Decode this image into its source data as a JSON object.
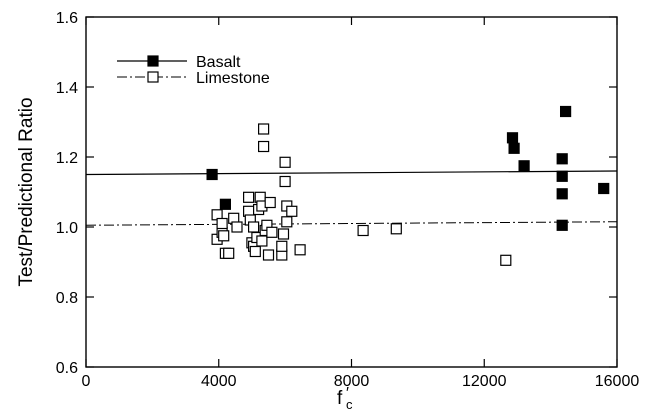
{
  "chart_data": {
    "type": "scatter",
    "xlabel_base": "f",
    "xlabel_sub": "c",
    "xlabel_prime": "′",
    "ylabel": "Test/Predictional Ratio",
    "xlim": [
      0,
      16000
    ],
    "ylim": [
      0.6,
      1.6
    ],
    "xticks": [
      0,
      4000,
      8000,
      12000,
      16000
    ],
    "yticks": [
      0.6,
      0.8,
      1.0,
      1.2,
      1.4,
      1.6
    ],
    "ytick_labels": [
      "0.6",
      "0.8",
      "1.0",
      "1.2",
      "1.4",
      "1.6"
    ],
    "legend_position": "top-left",
    "series": [
      {
        "name": "Basalt",
        "marker": "filled-square",
        "line_style": "solid",
        "fit_line": [
          1.15,
          1.16
        ],
        "points": [
          [
            3800,
            1.15
          ],
          [
            4200,
            1.065
          ],
          [
            12850,
            1.255
          ],
          [
            12900,
            1.225
          ],
          [
            13200,
            1.175
          ],
          [
            14350,
            1.195
          ],
          [
            14350,
            1.145
          ],
          [
            14350,
            1.095
          ],
          [
            14350,
            1.005
          ],
          [
            14450,
            1.33
          ],
          [
            15600,
            1.11
          ]
        ]
      },
      {
        "name": "Limestone",
        "marker": "open-square",
        "line_style": "dash-dot",
        "fit_line": [
          1.005,
          1.015
        ],
        "points": [
          [
            3950,
            1.035
          ],
          [
            3950,
            0.965
          ],
          [
            4100,
            0.985
          ],
          [
            4100,
            1.01
          ],
          [
            4150,
            0.975
          ],
          [
            4200,
            0.925
          ],
          [
            4300,
            0.925
          ],
          [
            4450,
            1.025
          ],
          [
            4550,
            1.0
          ],
          [
            4900,
            1.085
          ],
          [
            4900,
            1.045
          ],
          [
            4950,
            1.02
          ],
          [
            5000,
            0.955
          ],
          [
            5050,
            0.945
          ],
          [
            5050,
            1.0
          ],
          [
            5100,
            0.93
          ],
          [
            5150,
            0.97
          ],
          [
            5200,
            1.05
          ],
          [
            5250,
            1.085
          ],
          [
            5300,
            1.06
          ],
          [
            5300,
            0.96
          ],
          [
            5350,
            1.28
          ],
          [
            5350,
            1.23
          ],
          [
            5400,
            0.99
          ],
          [
            5450,
            1.005
          ],
          [
            5500,
            0.92
          ],
          [
            5550,
            1.07
          ],
          [
            5600,
            0.985
          ],
          [
            5900,
            0.92
          ],
          [
            5900,
            0.945
          ],
          [
            5950,
            0.98
          ],
          [
            6000,
            1.185
          ],
          [
            6000,
            1.13
          ],
          [
            6050,
            1.06
          ],
          [
            6050,
            1.015
          ],
          [
            6200,
            1.045
          ],
          [
            6450,
            0.935
          ],
          [
            8350,
            0.99
          ],
          [
            9350,
            0.995
          ],
          [
            12650,
            0.905
          ]
        ]
      }
    ]
  }
}
